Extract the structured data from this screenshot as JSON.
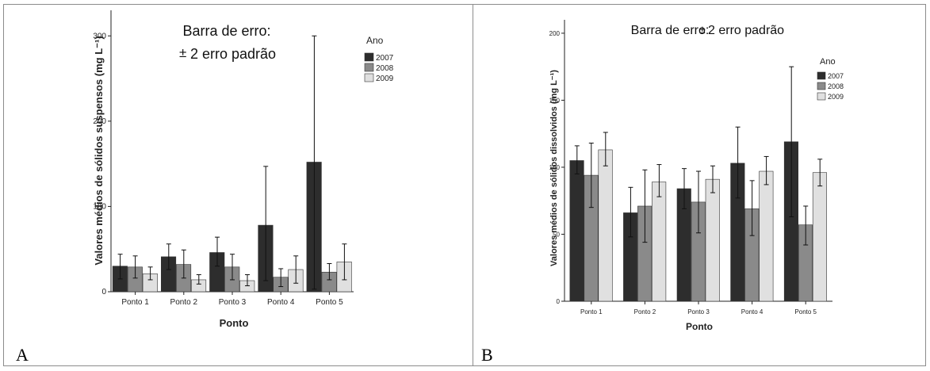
{
  "panels": [
    {
      "label": "A"
    },
    {
      "label": "B"
    }
  ],
  "chart_data": [
    {
      "type": "bar",
      "panel": "A",
      "title": "",
      "annotation_line1": "Barra de erro:",
      "annotation_pm": "±",
      "annotation_line2": "2 erro padrão",
      "xlabel": "Ponto",
      "ylabel": "Valores médios de sólidos suspensos (mg L⁻¹)",
      "legend_title": "Ano",
      "legend_position": "top-right",
      "categories": [
        "Ponto 1",
        "Ponto 2",
        "Ponto 3",
        "Ponto 4",
        "Ponto 5"
      ],
      "ylim": [
        0,
        330
      ],
      "yticks": [
        0,
        100,
        200,
        300
      ],
      "series": [
        {
          "name": "2007",
          "color": "#2d2d2d",
          "values": [
            30,
            41,
            46,
            78,
            152
          ],
          "err_low": [
            15,
            26,
            30,
            13,
            3
          ],
          "err_high": [
            44,
            56,
            64,
            147,
            300
          ]
        },
        {
          "name": "2008",
          "color": "#8a8a8a",
          "values": [
            29,
            32,
            29,
            17,
            23
          ],
          "err_low": [
            16,
            16,
            14,
            6,
            14
          ],
          "err_high": [
            42,
            49,
            44,
            27,
            33
          ]
        },
        {
          "name": "2009",
          "color": "#e0e0e0",
          "values": [
            21,
            14,
            13,
            26,
            35
          ],
          "err_low": [
            14,
            9,
            7,
            10,
            14
          ],
          "err_high": [
            29,
            20,
            20,
            42,
            56
          ]
        }
      ]
    },
    {
      "type": "bar",
      "panel": "B",
      "title": "",
      "annotation_line1": "Barra de erro:",
      "annotation_pm": "±",
      "annotation_line2": "2 erro padrão",
      "xlabel": "Ponto",
      "ylabel": "Valores médios de sólidos dissolvidos (mg L⁻¹)",
      "legend_title": "Ano",
      "legend_position": "top-right",
      "categories": [
        "Ponto 1",
        "Ponto 2",
        "Ponto 3",
        "Ponto 4",
        "Ponto 5"
      ],
      "ylim": [
        0,
        210
      ],
      "yticks": [
        0,
        50,
        100,
        150,
        200
      ],
      "series": [
        {
          "name": "2007",
          "color": "#2d2d2d",
          "values": [
            105,
            66,
            84,
            103,
            119
          ],
          "err_low": [
            95,
            48,
            69,
            77,
            63
          ],
          "err_high": [
            116,
            85,
            99,
            130,
            175
          ]
        },
        {
          "name": "2008",
          "color": "#8a8a8a",
          "values": [
            94,
            71,
            74,
            69,
            57
          ],
          "err_low": [
            70,
            44,
            51,
            49,
            42
          ],
          "err_high": [
            118,
            98,
            97,
            90,
            71
          ]
        },
        {
          "name": "2009",
          "color": "#e0e0e0",
          "values": [
            113,
            89,
            91,
            97,
            96
          ],
          "err_low": [
            101,
            78,
            81,
            87,
            86
          ],
          "err_high": [
            126,
            102,
            101,
            108,
            106
          ]
        }
      ]
    }
  ]
}
